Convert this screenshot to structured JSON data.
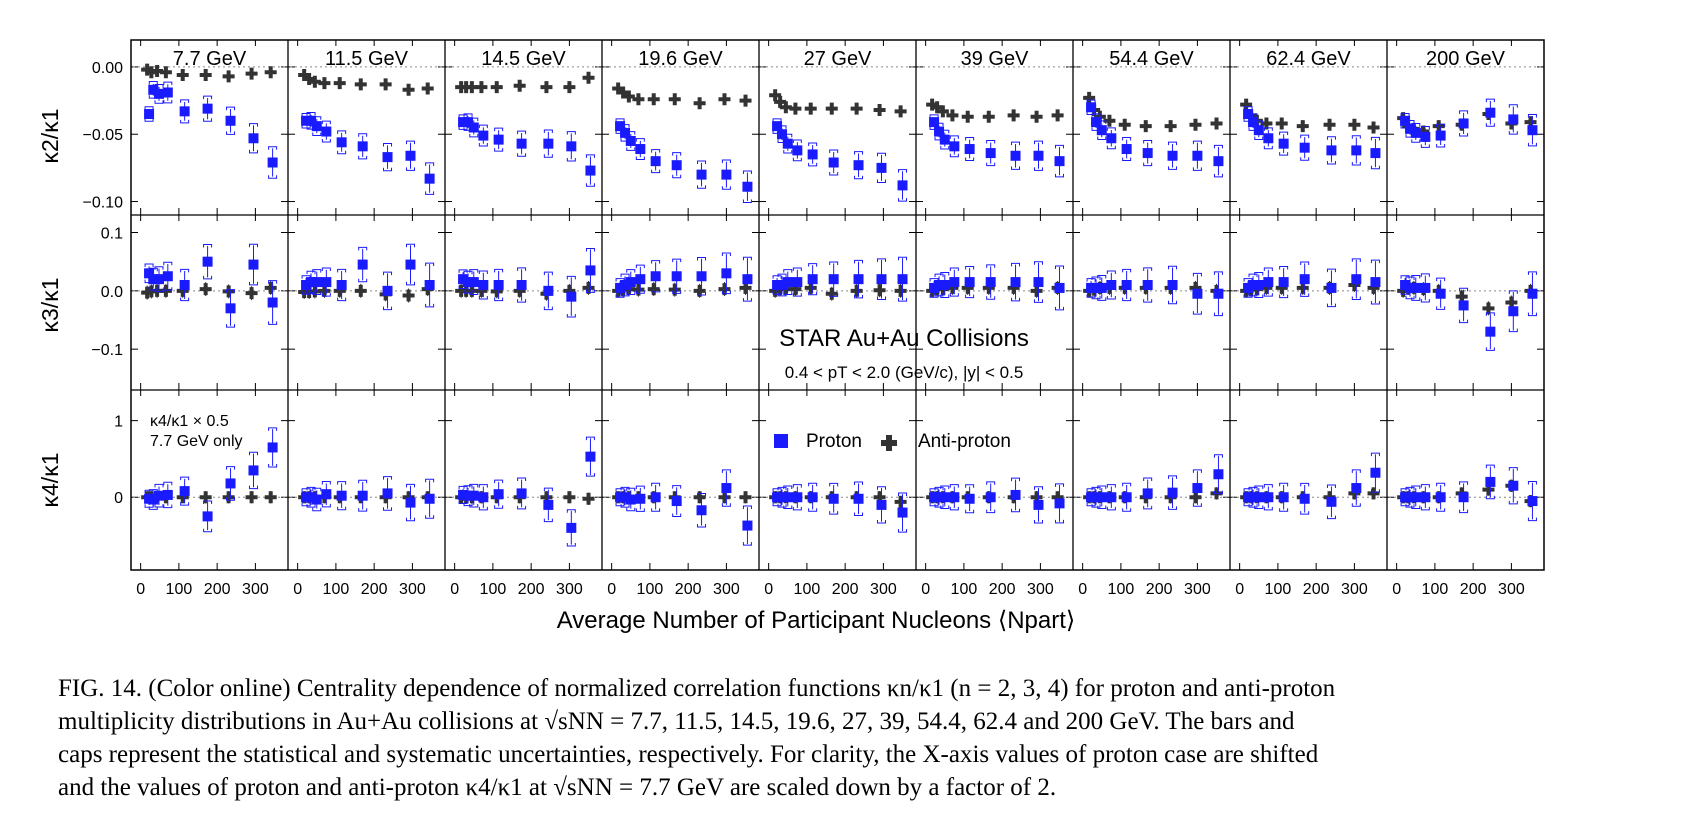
{
  "figure": {
    "energy_labels": [
      "7.7 GeV",
      "11.5 GeV",
      "14.5 GeV",
      "19.6 GeV",
      "27 GeV",
      "39 GeV",
      "54.4 GeV",
      "62.4 GeV",
      "200 GeV"
    ],
    "row_ylabels": [
      "κ2/κ1",
      "κ3/κ1",
      "κ4/κ1"
    ],
    "xlabel": "Average Number of Participant Nucleons ⟨Npart⟩",
    "star_title": "STAR Au+Au Collisions",
    "star_cuts": "0.4 < pT < 2.0 (GeV/c), |y| < 0.5",
    "inset_note_line1": "κ4/κ1 × 0.5",
    "inset_note_line2": "7.7 GeV only",
    "legend": {
      "proton": "Proton",
      "antiproton": "Anti-proton"
    },
    "colors": {
      "proton": "#1a1aff",
      "antiproton": "#333333"
    }
  },
  "caption": {
    "line1": "FIG. 14. (Color online) Centrality dependence of normalized correlation functions κn/κ1 (n = 2, 3, 4) for proton and anti-proton",
    "line2": "multiplicity distributions in Au+Au collisions at √sNN = 7.7, 11.5, 14.5, 19.6, 27, 39, 54.4, 62.4 and 200 GeV. The bars and",
    "line3": "caps represent the statistical and systematic uncertainties, respectively. For clarity, the X-axis values of proton case are shifted",
    "line4": "and the values of proton and anti-proton κ4/κ1 at √sNN = 7.7 GeV are scaled down by a factor of 2."
  },
  "chart_data": {
    "type": "scatter",
    "grid": false,
    "x_ticks": [
      0,
      100,
      200,
      300
    ],
    "xlim": [
      -20,
      380
    ],
    "rows": [
      {
        "ylabel": "κ2/κ1",
        "ylim": [
          -0.11,
          0.02
        ],
        "yticks": [
          0.0,
          -0.05,
          -0.1
        ],
        "ytick_labels": [
          "0.00",
          "−0.05",
          "−0.10"
        ]
      },
      {
        "ylabel": "κ3/κ1",
        "ylim": [
          -0.17,
          0.13
        ],
        "yticks": [
          0.1,
          0.0,
          -0.1
        ],
        "ytick_labels": [
          "0.1",
          "0.0",
          "−0.1"
        ]
      },
      {
        "ylabel": "κ4/κ1",
        "ylim": [
          -0.95,
          1.4
        ],
        "yticks": [
          1,
          0
        ],
        "ytick_labels": [
          "1",
          "0"
        ]
      }
    ],
    "npart": [
      [
        17,
        28,
        43,
        66,
        110,
        170,
        230,
        290,
        340
      ],
      [
        17,
        30,
        45,
        70,
        110,
        165,
        230,
        290,
        340
      ],
      [
        17,
        30,
        45,
        70,
        110,
        170,
        240,
        300,
        350
      ],
      [
        17,
        30,
        45,
        70,
        110,
        165,
        230,
        295,
        350
      ],
      [
        17,
        30,
        45,
        70,
        110,
        165,
        230,
        290,
        345
      ],
      [
        17,
        30,
        45,
        70,
        110,
        165,
        230,
        290,
        345
      ],
      [
        17,
        30,
        45,
        70,
        110,
        165,
        230,
        295,
        350
      ],
      [
        17,
        30,
        45,
        70,
        110,
        165,
        235,
        300,
        350
      ],
      [
        17,
        30,
        45,
        70,
        110,
        170,
        240,
        300,
        350
      ]
    ],
    "panels": [
      {
        "energy": "7.7 GeV",
        "k2_proton": [
          -0.035,
          -0.017,
          -0.02,
          -0.019,
          -0.033,
          -0.031,
          -0.04,
          -0.053,
          -0.071
        ],
        "k2_anti": [
          -0.002,
          -0.004,
          -0.003,
          -0.004,
          -0.006,
          -0.006,
          -0.007,
          -0.005,
          -0.004
        ],
        "k3_proton": [
          0.03,
          0.02,
          0.02,
          0.025,
          0.01,
          0.05,
          -0.03,
          0.045,
          -0.02
        ],
        "k3_anti": [
          -0.003,
          -0.001,
          0.0,
          0.0,
          0.0,
          0.003,
          -0.001,
          -0.004,
          0.005
        ],
        "k4_proton": [
          -0.02,
          -0.03,
          0.02,
          0.03,
          0.08,
          -0.25,
          0.18,
          0.35,
          0.65
        ],
        "k4_anti": [
          0.0,
          0.0,
          0.0,
          0.0,
          0.0,
          0.0,
          0.0,
          0.0,
          0.0
        ]
      },
      {
        "energy": "11.5 GeV",
        "k2_proton": [
          -0.04,
          -0.04,
          -0.044,
          -0.048,
          -0.056,
          -0.059,
          -0.067,
          -0.066,
          -0.083
        ],
        "k2_anti": [
          -0.006,
          -0.009,
          -0.011,
          -0.012,
          -0.012,
          -0.013,
          -0.013,
          -0.017,
          -0.016
        ],
        "k3_proton": [
          0.01,
          0.015,
          0.015,
          0.015,
          0.01,
          0.045,
          0.0,
          0.045,
          0.01
        ],
        "k3_anti": [
          -0.002,
          -0.002,
          -0.001,
          0.0,
          0.0,
          0.0,
          -0.006,
          -0.008,
          0.003
        ],
        "k4_proton": [
          0.0,
          0.0,
          -0.03,
          0.04,
          0.02,
          0.02,
          0.05,
          -0.07,
          -0.02
        ],
        "k4_anti": [
          0.0,
          0.0,
          0.0,
          0.0,
          0.0,
          0.0,
          0.0,
          0.0,
          0.0
        ]
      },
      {
        "energy": "14.5 GeV",
        "k2_proton": [
          -0.041,
          -0.041,
          -0.045,
          -0.051,
          -0.054,
          -0.057,
          -0.057,
          -0.059,
          -0.077
        ],
        "k2_anti": [
          -0.015,
          -0.015,
          -0.015,
          -0.015,
          -0.015,
          -0.014,
          -0.015,
          -0.015,
          -0.008
        ],
        "k3_proton": [
          0.02,
          0.015,
          0.015,
          0.01,
          0.01,
          0.01,
          0.0,
          -0.01,
          0.035
        ],
        "k3_anti": [
          0.0,
          0.0,
          0.0,
          0.0,
          -0.001,
          0.0,
          -0.005,
          0.0,
          0.005
        ],
        "k4_proton": [
          0.03,
          0.02,
          0.02,
          0.0,
          0.04,
          0.05,
          -0.1,
          -0.4,
          0.53
        ],
        "k4_anti": [
          0.0,
          0.0,
          0.0,
          0.0,
          0.0,
          0.0,
          0.0,
          0.0,
          -0.02
        ]
      },
      {
        "energy": "19.6 GeV",
        "k2_proton": [
          -0.044,
          -0.049,
          -0.055,
          -0.061,
          -0.07,
          -0.073,
          -0.08,
          -0.08,
          -0.089
        ],
        "k2_anti": [
          -0.016,
          -0.019,
          -0.022,
          -0.024,
          -0.024,
          -0.024,
          -0.027,
          -0.024,
          -0.025
        ],
        "k3_proton": [
          0.005,
          0.01,
          0.015,
          0.02,
          0.025,
          0.025,
          0.025,
          0.03,
          0.02
        ],
        "k3_anti": [
          0.0,
          0.002,
          0.003,
          0.002,
          0.003,
          0.002,
          0.0,
          0.003,
          0.005
        ],
        "k4_proton": [
          0.0,
          0.0,
          -0.03,
          -0.02,
          0.0,
          -0.05,
          -0.17,
          0.12,
          -0.37
        ],
        "k4_anti": [
          0.0,
          0.0,
          0.0,
          0.0,
          0.0,
          0.0,
          0.0,
          0.0,
          0.0
        ]
      },
      {
        "energy": "27 GeV",
        "k2_proton": [
          -0.044,
          -0.05,
          -0.057,
          -0.062,
          -0.065,
          -0.071,
          -0.073,
          -0.075,
          -0.088
        ],
        "k2_anti": [
          -0.021,
          -0.026,
          -0.03,
          -0.031,
          -0.031,
          -0.031,
          -0.031,
          -0.032,
          -0.033
        ],
        "k3_proton": [
          0.01,
          0.01,
          0.015,
          0.015,
          0.02,
          0.02,
          0.02,
          0.02,
          0.02
        ],
        "k3_anti": [
          0.0,
          0.003,
          0.003,
          0.003,
          0.005,
          -0.005,
          0.0,
          0.001,
          0.0
        ],
        "k4_proton": [
          0.0,
          0.0,
          0.0,
          0.0,
          0.0,
          -0.02,
          -0.02,
          -0.1,
          -0.2
        ],
        "k4_anti": [
          0.0,
          0.0,
          0.0,
          0.0,
          0.0,
          0.0,
          0.0,
          0.0,
          -0.06
        ]
      },
      {
        "energy": "39 GeV",
        "k2_proton": [
          -0.041,
          -0.048,
          -0.054,
          -0.059,
          -0.061,
          -0.064,
          -0.066,
          -0.066,
          -0.07
        ],
        "k2_anti": [
          -0.028,
          -0.03,
          -0.033,
          -0.036,
          -0.037,
          -0.037,
          -0.036,
          -0.037,
          -0.036
        ],
        "k3_proton": [
          0.005,
          0.01,
          0.01,
          0.015,
          0.015,
          0.015,
          0.015,
          0.015,
          0.005
        ],
        "k3_anti": [
          0.0,
          0.003,
          0.003,
          0.005,
          0.005,
          0.005,
          0.005,
          0.0,
          0.005
        ],
        "k4_proton": [
          0.0,
          0.0,
          0.0,
          0.0,
          -0.02,
          0.0,
          0.03,
          -0.1,
          -0.08
        ],
        "k4_anti": [
          0.0,
          0.0,
          0.0,
          0.0,
          0.0,
          0.0,
          0.0,
          0.0,
          0.0
        ]
      },
      {
        "energy": "54.4 GeV",
        "k2_proton": [
          -0.03,
          -0.041,
          -0.047,
          -0.053,
          -0.061,
          -0.064,
          -0.066,
          -0.066,
          -0.07
        ],
        "k2_anti": [
          -0.023,
          -0.032,
          -0.037,
          -0.04,
          -0.043,
          -0.044,
          -0.044,
          -0.043,
          -0.042
        ],
        "k3_proton": [
          0.005,
          0.005,
          0.005,
          0.01,
          0.01,
          0.01,
          0.01,
          -0.005,
          -0.005
        ],
        "k3_anti": [
          0.0,
          0.002,
          0.005,
          0.005,
          0.005,
          0.005,
          0.005,
          0.005,
          0.0
        ],
        "k4_proton": [
          0.0,
          0.0,
          0.0,
          0.0,
          0.0,
          0.05,
          0.06,
          0.12,
          0.3
        ],
        "k4_anti": [
          0.0,
          0.0,
          0.0,
          0.0,
          0.0,
          0.0,
          0.0,
          0.0,
          0.05
        ]
      },
      {
        "energy": "62.4 GeV",
        "k2_proton": [
          -0.035,
          -0.041,
          -0.047,
          -0.053,
          -0.057,
          -0.06,
          -0.062,
          -0.062,
          -0.064
        ],
        "k2_anti": [
          -0.028,
          -0.036,
          -0.04,
          -0.042,
          -0.042,
          -0.044,
          -0.043,
          -0.043,
          -0.045
        ],
        "k3_proton": [
          0.005,
          0.01,
          0.01,
          0.015,
          0.015,
          0.02,
          0.005,
          0.02,
          0.015
        ],
        "k3_anti": [
          0.0,
          0.002,
          0.003,
          0.005,
          0.005,
          0.005,
          0.005,
          0.01,
          0.005
        ],
        "k4_proton": [
          0.0,
          0.0,
          0.0,
          0.0,
          0.0,
          -0.02,
          -0.06,
          0.12,
          0.32
        ],
        "k4_anti": [
          0.0,
          0.0,
          0.0,
          0.0,
          0.0,
          0.0,
          0.0,
          0.05,
          0.05
        ]
      },
      {
        "energy": "200 GeV",
        "k2_proton": [
          -0.04,
          -0.046,
          -0.049,
          -0.052,
          -0.051,
          -0.042,
          -0.034,
          -0.039,
          -0.047
        ],
        "k2_anti": [
          -0.038,
          -0.044,
          -0.046,
          -0.048,
          -0.044,
          -0.043,
          -0.035,
          -0.042,
          -0.041
        ],
        "k3_proton": [
          0.01,
          0.005,
          0.005,
          0.005,
          -0.005,
          -0.025,
          -0.07,
          -0.035,
          -0.005
        ],
        "k3_anti": [
          0.0,
          0.005,
          0.005,
          0.003,
          0.0,
          -0.01,
          -0.03,
          -0.02,
          0.0
        ],
        "k4_proton": [
          0.0,
          0.0,
          0.0,
          0.0,
          0.0,
          0.0,
          0.2,
          0.15,
          -0.05
        ],
        "k4_anti": [
          0.0,
          0.0,
          0.0,
          0.0,
          0.0,
          0.05,
          0.1,
          0.15,
          -0.05
        ]
      }
    ]
  }
}
